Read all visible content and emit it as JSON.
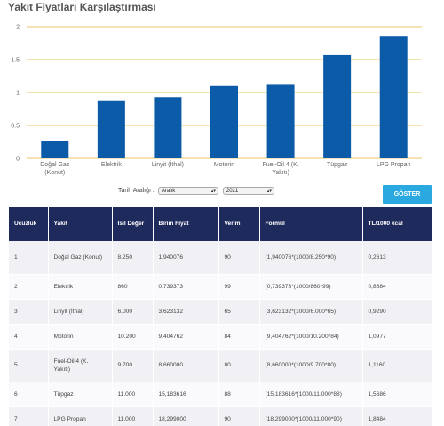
{
  "page": {
    "title": "Yakıt Fiyatları Karşılaştırması"
  },
  "chart_data": {
    "type": "bar",
    "categories": [
      "Doğal Gaz (Konut)",
      "Elektrik",
      "Linyit (İthal)",
      "Motorin",
      "Fuel-Oil 4 (K. Yakıtı)",
      "Tüpgaz",
      "LPG Propan"
    ],
    "category_lines": [
      [
        "Doğal Gaz",
        "(Konut)"
      ],
      [
        "Elektrik"
      ],
      [
        "Linyit (İthal)"
      ],
      [
        "Motorin"
      ],
      [
        "Fuel-Oil 4 (K.",
        "Yakıtı)"
      ],
      [
        "Tüpgaz"
      ],
      [
        "LPG Propan"
      ]
    ],
    "values": [
      0.2613,
      0.8684,
      0.929,
      1.0977,
      1.116,
      1.5686,
      1.8484
    ],
    "ylim": [
      0,
      2
    ],
    "yticks": [
      "0",
      "0.5",
      "1",
      "1.5",
      "2"
    ],
    "grid": true,
    "bar_color": "#0b5ba8",
    "grid_color": "#e8b13a"
  },
  "filters": {
    "label": "Tarih Aralığı :",
    "month": "Aralık",
    "year": "2021"
  },
  "button": {
    "label": "GÖSTER"
  },
  "table": {
    "headers": [
      "Ucuzluk",
      "Yakıt",
      "Isıl Değer",
      "Birim Fiyat",
      "Verim",
      "Formül",
      "TL/1000 kcal"
    ],
    "rows": [
      [
        "1",
        "Doğal Gaz (Konut)",
        "8.250",
        "1,940076",
        "90",
        "(1,940076*(1000/8.250*90)",
        "0,2613"
      ],
      [
        "2",
        "Elektrik",
        "860",
        "0,739373",
        "99",
        "(0,739373*(1000/860*99)",
        "0,8684"
      ],
      [
        "3",
        "Linyit (İthal)",
        "6.000",
        "3,623132",
        "65",
        "(3,623132*(1000/6.000*65)",
        "0,9290"
      ],
      [
        "4",
        "Motorin",
        "10.200",
        "9,404762",
        "84",
        "(9,404762*(1000/10.200*84)",
        "1,0977"
      ],
      [
        "5",
        "Fuel-Oil 4 (K. Yakıtı)",
        "9.700",
        "8,660000",
        "80",
        "(8,660000*(1000/9.700*80)",
        "1,1160"
      ],
      [
        "6",
        "Tüpgaz",
        "11.000",
        "15,183616",
        "88",
        "(15,183616*(1000/11.000*88)",
        "1,5686"
      ],
      [
        "7",
        "LPG Propan",
        "11.000",
        "18,299000",
        "90",
        "(18,299000*(1000/11.000*90)",
        "1,8484"
      ]
    ]
  }
}
